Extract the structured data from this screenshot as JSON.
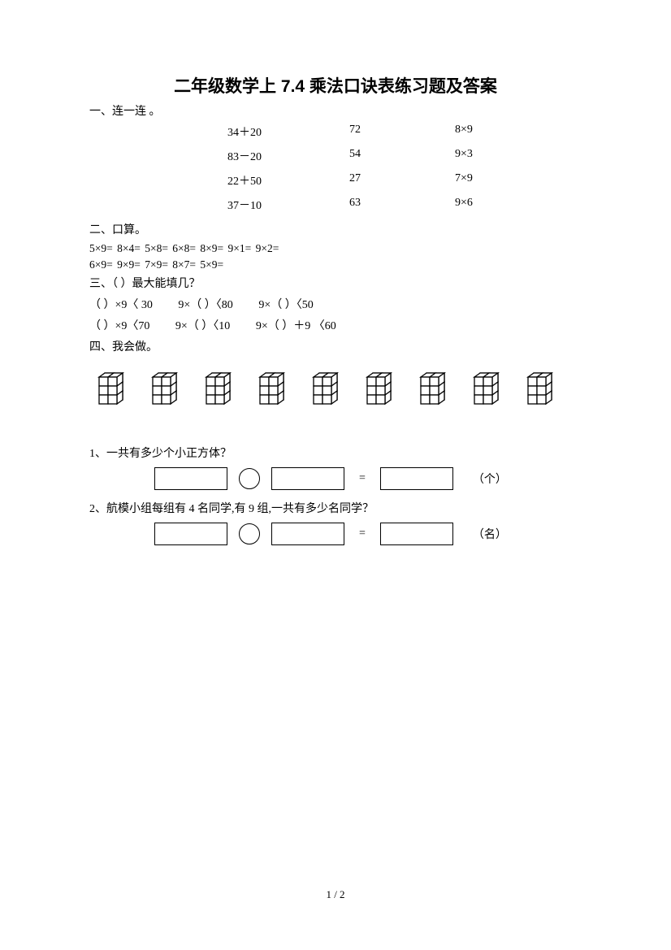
{
  "title": "二年级数学上 7.4 乘法口诀表练习题及答案",
  "sections": {
    "s1": "一、连一连 。",
    "s2": "二、口算。",
    "s3": "三、（    ）最大能填几？",
    "s4": "四、我会做。"
  },
  "match": [
    {
      "a": "34＋20",
      "b": "72",
      "c": "8×9"
    },
    {
      "a": "83－20",
      "b": "54",
      "c": "9×3"
    },
    {
      "a": "22＋50",
      "b": "27",
      "c": "7×9"
    },
    {
      "a": "37－10",
      "b": "63",
      "c": "9×6"
    }
  ],
  "calc": {
    "line1": "5×9=    8×4=    5×8=     6×8=    8×9=       9×1=    9×2=",
    "line2": "6×9=     9×9=     7×9=      8×7=     5×9="
  },
  "fill": {
    "l1a": "（    ）×9〈 30",
    "l1b": "9×（    ）〈80",
    "l1c": "9×（    ）〈50",
    "l2a": "（    ）×9〈70",
    "l2b": "9×（    ）〈10",
    "l2c": "9×（    ）＋9 〈60"
  },
  "questions": {
    "q1": "1、一共有多少个小正方体？",
    "q1unit": "（个）",
    "q2": "2、航模小组每组有 4 名同学,有 9 组,一共有多少名同学？",
    "q2unit": "（名）"
  },
  "pagenum": "1 / 2",
  "cube": {
    "count": 9,
    "stroke": "#000000",
    "fill": "#ffffff"
  }
}
